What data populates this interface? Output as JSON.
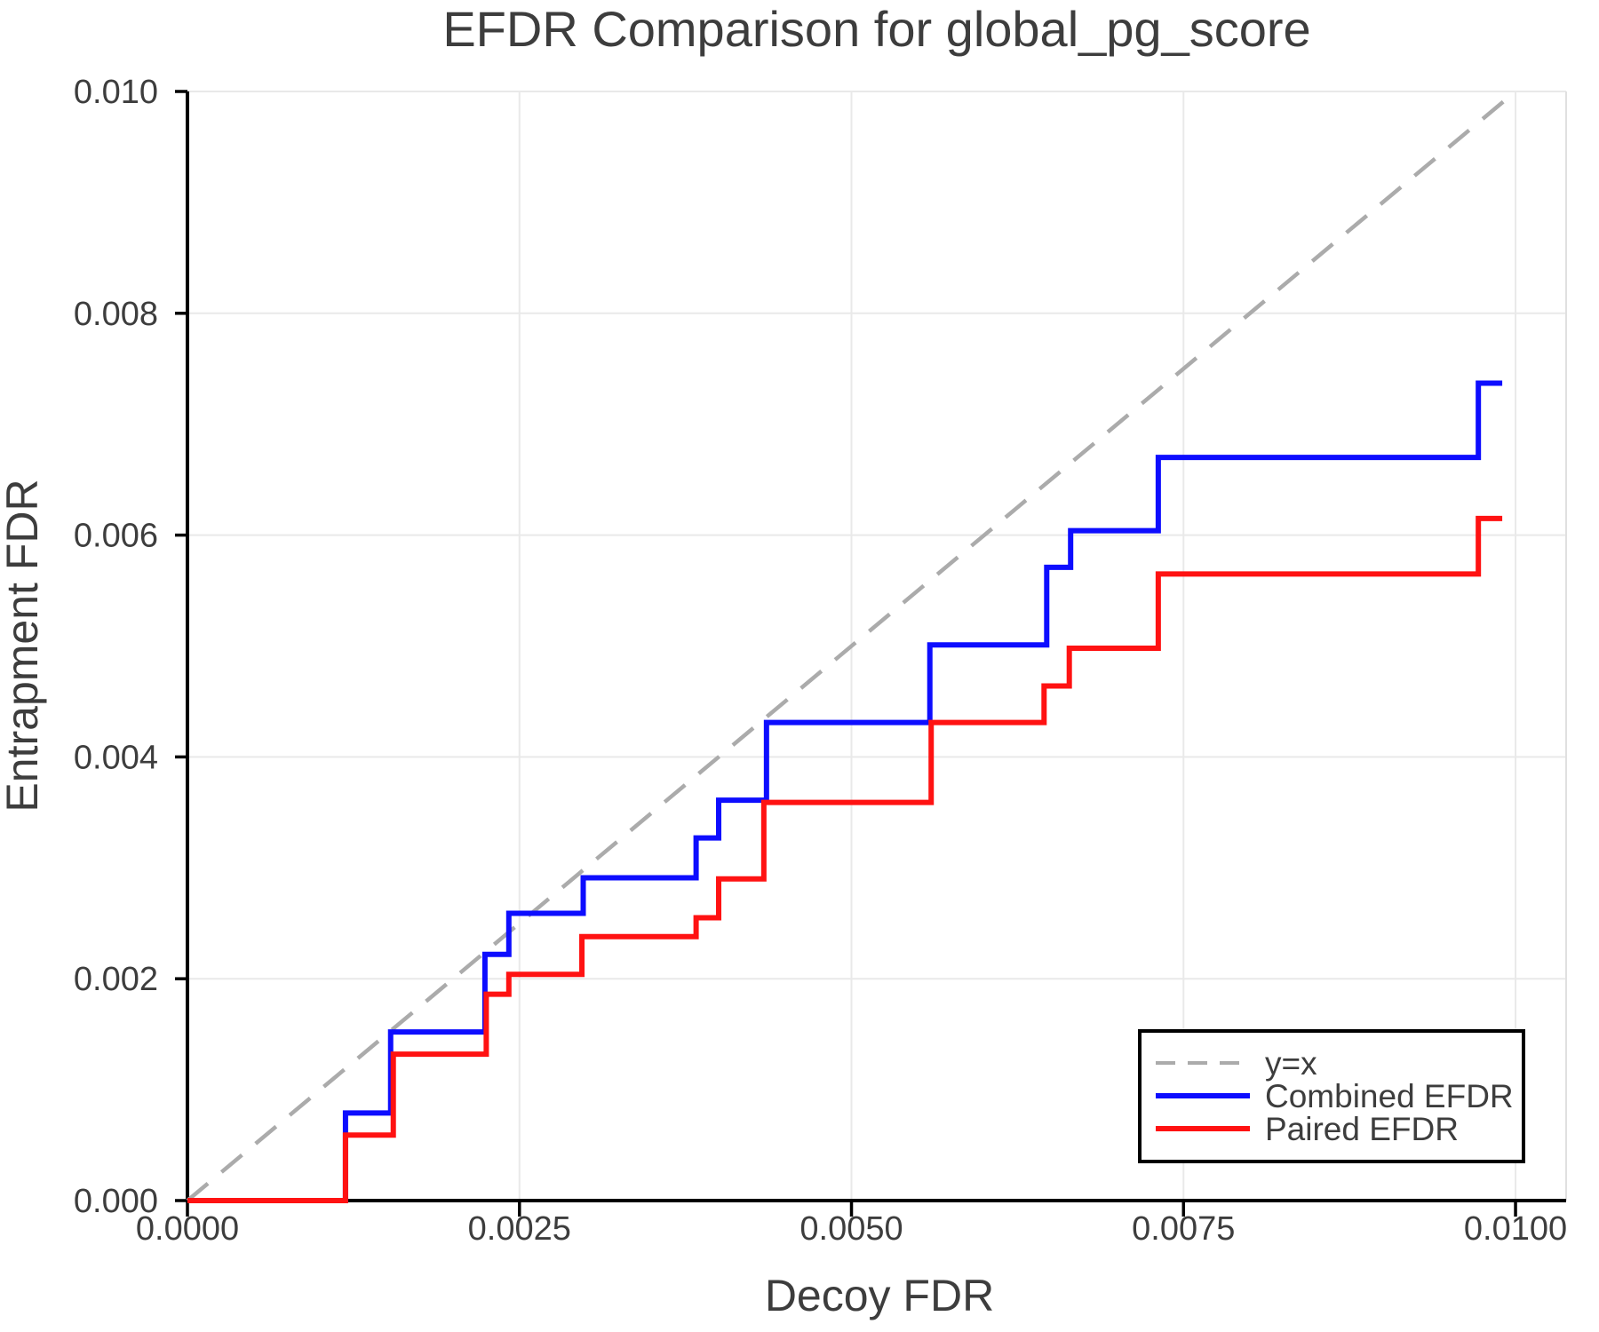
{
  "colors": {
    "background": "#ffffff",
    "text": "#3d3d3d",
    "grid": "#e9e9e9",
    "spine": "#000000",
    "right_edge": "#e0e0e0",
    "reference": "#ababab",
    "combined": "#0d0dff",
    "paired": "#ff1212"
  },
  "chart_data": {
    "type": "line",
    "subtype": "step",
    "title": "EFDR Comparison for global_pg_score",
    "xlabel": "Decoy FDR",
    "ylabel": "Entrapment FDR",
    "xlim": [
      0,
      0.010381
    ],
    "ylim": [
      0,
      0.01
    ],
    "grid": true,
    "xticks": {
      "values": [
        0,
        0.0025,
        0.005,
        0.0075,
        0.01
      ],
      "labels": [
        "0.0000",
        "0.0025",
        "0.0050",
        "0.0075",
        "0.0100"
      ]
    },
    "yticks": {
      "values": [
        0,
        0.002,
        0.004,
        0.006,
        0.008,
        0.01
      ],
      "labels": [
        "0.000",
        "0.002",
        "0.004",
        "0.006",
        "0.008",
        "0.010"
      ]
    },
    "reference_line": {
      "label": "y=x",
      "from": [
        0,
        0
      ],
      "to": [
        0.01,
        0.01
      ],
      "style": "dashed",
      "color_key": "reference"
    },
    "series": [
      {
        "name": "Combined EFDR",
        "color_key": "combined",
        "start": [
          0,
          0
        ],
        "end_x": 0.0099,
        "steps": [
          [
            0.00119,
            0.00079
          ],
          [
            0.00153,
            0.00152
          ],
          [
            0.00224,
            0.00222
          ],
          [
            0.00242,
            0.00259
          ],
          [
            0.00298,
            0.00291
          ],
          [
            0.00383,
            0.00327
          ],
          [
            0.004,
            0.00361
          ],
          [
            0.00436,
            0.00431
          ],
          [
            0.00559,
            0.00501
          ],
          [
            0.00647,
            0.00571
          ],
          [
            0.00665,
            0.00604
          ],
          [
            0.00731,
            0.0067
          ],
          [
            0.00972,
            0.00737
          ]
        ]
      },
      {
        "name": "Paired EFDR",
        "color_key": "paired",
        "start": [
          0,
          0
        ],
        "end_x": 0.0099,
        "steps": [
          [
            0.00119,
            0.00059
          ],
          [
            0.00155,
            0.00132
          ],
          [
            0.00225,
            0.00186
          ],
          [
            0.00242,
            0.00204
          ],
          [
            0.00297,
            0.00238
          ],
          [
            0.00383,
            0.00255
          ],
          [
            0.004,
            0.0029
          ],
          [
            0.00434,
            0.00359
          ],
          [
            0.0056,
            0.00431
          ],
          [
            0.00645,
            0.00464
          ],
          [
            0.00664,
            0.00498
          ],
          [
            0.00731,
            0.00565
          ],
          [
            0.00972,
            0.00615
          ]
        ]
      }
    ],
    "legend": {
      "position": "bottom-right",
      "entries": [
        "y=x",
        "Combined EFDR",
        "Paired EFDR"
      ]
    }
  }
}
